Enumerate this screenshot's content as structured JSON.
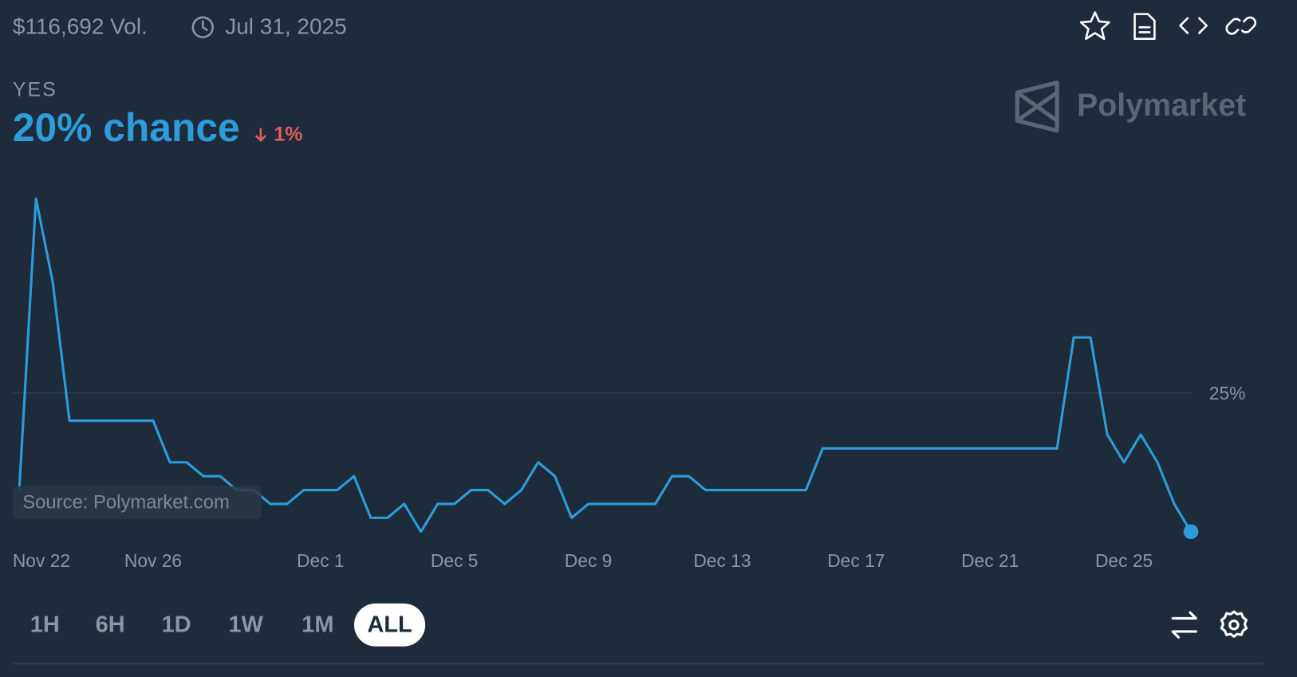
{
  "header": {
    "volume": "$116,692 Vol.",
    "date": "Jul 31, 2025"
  },
  "outcome": {
    "label": "YES",
    "chance": "20% chance",
    "change": "1%"
  },
  "watermark": "Polymarket",
  "source": "Source: Polymarket.com",
  "ranges": [
    "1H",
    "6H",
    "1D",
    "1W",
    "1M",
    "ALL"
  ],
  "chart_data": {
    "type": "line",
    "color": "#2d9cdb",
    "categories": [
      "Nov 22",
      null,
      null,
      null,
      null,
      null,
      null,
      null,
      "Nov 26",
      null,
      null,
      null,
      null,
      null,
      null,
      null,
      null,
      null,
      "Dec 1",
      null,
      null,
      null,
      null,
      null,
      null,
      null,
      "Dec 5",
      null,
      null,
      null,
      null,
      null,
      null,
      null,
      "Dec 9",
      null,
      null,
      null,
      null,
      null,
      null,
      null,
      "Dec 13",
      null,
      null,
      null,
      null,
      null,
      null,
      null,
      "Dec 17",
      null,
      null,
      null,
      null,
      null,
      null,
      null,
      "Dec 21",
      null,
      null,
      null,
      null,
      null,
      null,
      null,
      "Dec 25",
      null,
      null,
      null,
      null
    ],
    "values": [
      21.5,
      32,
      29,
      24,
      24,
      24,
      24,
      24,
      24,
      22.5,
      22.5,
      22,
      22,
      21.5,
      21.5,
      21,
      21,
      21.5,
      21.5,
      21.5,
      22,
      20.5,
      20.5,
      21,
      20,
      21,
      21,
      21.5,
      21.5,
      21,
      21.5,
      22.5,
      22,
      20.5,
      21,
      21,
      21,
      21,
      21,
      22,
      22,
      21.5,
      21.5,
      21.5,
      21.5,
      21.5,
      21.5,
      21.5,
      23,
      23,
      23,
      23,
      23,
      23,
      23,
      23,
      23,
      23,
      23,
      23,
      23,
      23,
      23,
      27,
      27,
      23.5,
      22.5,
      23.5,
      22.5,
      21,
      20
    ],
    "ylim": [
      19.5,
      33.2
    ],
    "yticks": [
      {
        "value": 25,
        "label": "25%"
      }
    ],
    "grid": true
  }
}
